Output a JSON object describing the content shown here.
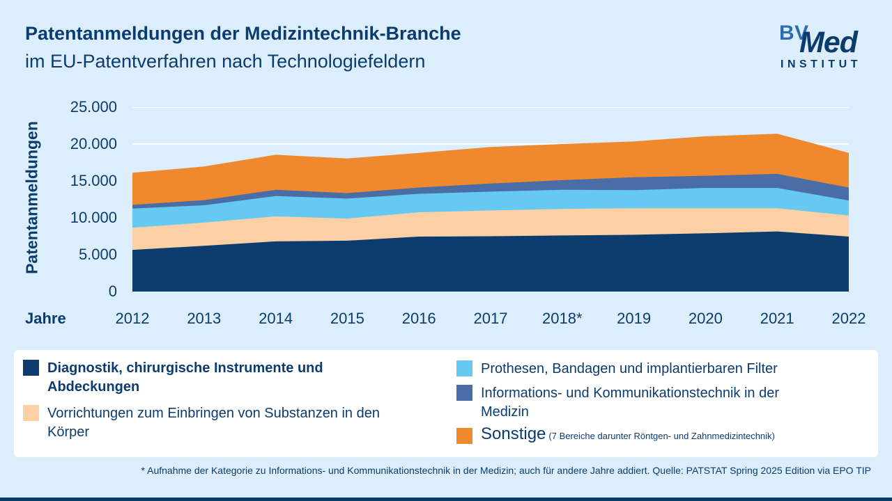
{
  "header": {
    "title_line1": "Patentanmeldungen der Medizintechnik-Branche",
    "title_line2": "im EU-Patentverfahren nach Technologiefeldern",
    "logo": {
      "bv": "BV",
      "med": "Med",
      "institut": "INSTITUT"
    }
  },
  "chart_data": {
    "type": "area",
    "stacked": true,
    "title": "Patentanmeldungen der Medizintechnik-Branche im EU-Patentverfahren nach Technologiefeldern",
    "xlabel": "Jahre",
    "ylabel": "Patentanmeldungen",
    "ylim": [
      0,
      25000
    ],
    "grid": "horizontal-white-lines",
    "legend_position": "bottom",
    "x_labels": [
      "2012",
      "2013",
      "2014",
      "2015",
      "2016",
      "2017",
      "2018*",
      "2019",
      "2020",
      "2021",
      "2022"
    ],
    "yticks": [
      {
        "value": 0,
        "label": "0"
      },
      {
        "value": 5000,
        "label": "5.000"
      },
      {
        "value": 10000,
        "label": "10.000"
      },
      {
        "value": 15000,
        "label": "15.000"
      },
      {
        "value": 20000,
        "label": "20.000"
      },
      {
        "value": 25000,
        "label": "25.000"
      }
    ],
    "series": [
      {
        "key": "diagnostik",
        "name": "Diagnostik, chirurgische Instrumente und Abdeckungen",
        "color": "#0c3c6e",
        "values": [
          5650,
          6200,
          6800,
          6900,
          7450,
          7500,
          7600,
          7700,
          7900,
          8150,
          7450
        ]
      },
      {
        "key": "vorrichtungen",
        "name": "Vorrichtungen zum Einbringen von Substanzen in den Körper",
        "color": "#fbd0a4",
        "values": [
          3000,
          3150,
          3400,
          3000,
          3300,
          3500,
          3600,
          3600,
          3400,
          3150,
          2850
        ]
      },
      {
        "key": "prothesen",
        "name": "Prothesen, Bandagen und implantierbaren Filter",
        "color": "#66c9f1",
        "values": [
          2600,
          2350,
          2750,
          2700,
          2500,
          2550,
          2600,
          2450,
          2750,
          2750,
          2050
        ]
      },
      {
        "key": "ikt",
        "name": "Informations- und Kommunikationstechnik in der Medizin",
        "color": "#4a6da6",
        "values": [
          500,
          700,
          850,
          750,
          850,
          1100,
          1300,
          1750,
          1650,
          1900,
          1750
        ]
      },
      {
        "key": "sonstige",
        "name": "Sonstige",
        "note": "(7 Bereiche darunter Röntgen- und Zahnmedizintechnik)",
        "color": "#f0892e",
        "values": [
          4350,
          4550,
          4750,
          4700,
          4700,
          4950,
          4900,
          4850,
          5350,
          5450,
          4700
        ]
      }
    ]
  },
  "footnote": "* Aufnahme der Kategorie zu Informations- und Kommunikationstechnik in der Medizin; auch für andere Jahre addiert. Quelle: PATSTAT Spring 2025 Edition via EPO TIP"
}
